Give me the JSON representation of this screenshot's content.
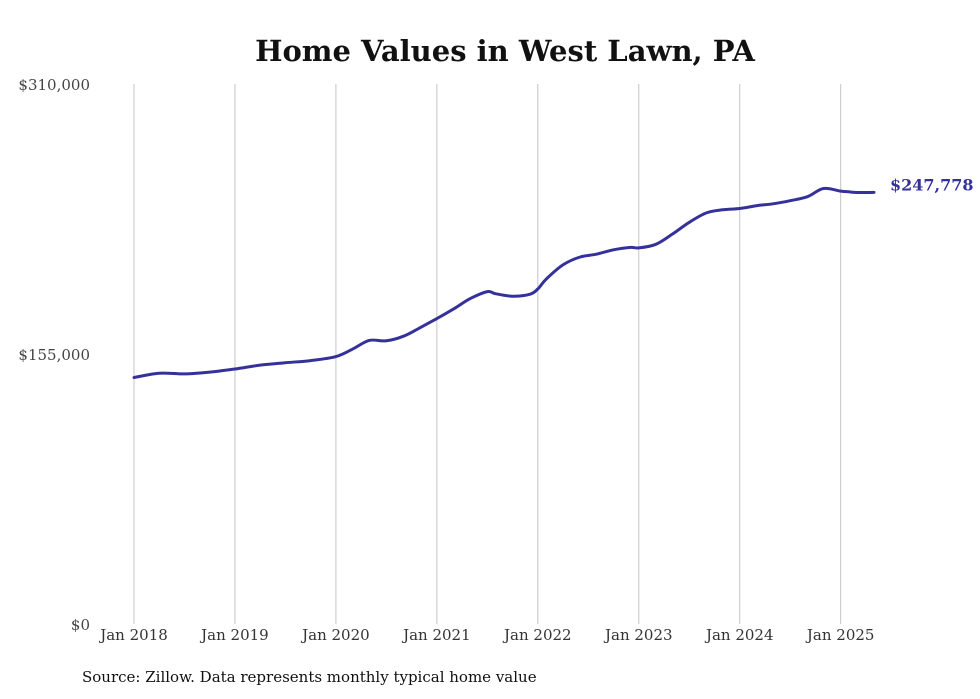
{
  "chart_data": {
    "type": "line",
    "title": "Home Values in West Lawn, PA",
    "xlabel": "",
    "ylabel": "",
    "ylim": [
      0,
      310000
    ],
    "y_ticks": [
      {
        "value": 0,
        "label": "$0"
      },
      {
        "value": 155000,
        "label": "$155,000"
      },
      {
        "value": 310000,
        "label": "$310,000"
      }
    ],
    "x_ticks": [
      {
        "value": 2018,
        "label": "Jan 2018"
      },
      {
        "value": 2019,
        "label": "Jan 2019"
      },
      {
        "value": 2020,
        "label": "Jan 2020"
      },
      {
        "value": 2021,
        "label": "Jan 2021"
      },
      {
        "value": 2022,
        "label": "Jan 2022"
      },
      {
        "value": 2023,
        "label": "Jan 2023"
      },
      {
        "value": 2024,
        "label": "Jan 2024"
      },
      {
        "value": 2025,
        "label": "Jan 2025"
      }
    ],
    "xlim": [
      2018,
      2025.33
    ],
    "grid": "vertical",
    "color": "#35319a",
    "series": [
      {
        "x": [
          2018.0,
          2018.25,
          2018.5,
          2018.75,
          2019.0,
          2019.25,
          2019.5,
          2019.75,
          2020.0,
          2020.17,
          2020.33,
          2020.5,
          2020.67,
          2020.83,
          2021.0,
          2021.17,
          2021.33,
          2021.5,
          2021.58,
          2021.75,
          2021.92,
          2022.0,
          2022.08,
          2022.25,
          2022.42,
          2022.58,
          2022.75,
          2022.92,
          2023.0,
          2023.17,
          2023.33,
          2023.5,
          2023.67,
          2023.83,
          2024.0,
          2024.17,
          2024.33,
          2024.5,
          2024.67,
          2024.83,
          2025.0,
          2025.08,
          2025.17,
          2025.33
        ],
        "values": [
          141500,
          144000,
          143600,
          144600,
          146400,
          148600,
          150000,
          151200,
          153500,
          158000,
          162800,
          162600,
          165200,
          170000,
          175300,
          181000,
          186800,
          190800,
          189600,
          188200,
          189300,
          192300,
          197800,
          206200,
          210700,
          212300,
          214800,
          216200,
          215900,
          218000,
          223700,
          230600,
          236000,
          237800,
          238500,
          240200,
          241200,
          243000,
          245300,
          250000,
          248500,
          248100,
          247700,
          247778
        ]
      }
    ],
    "end_label": "$247,778"
  },
  "source_note": "Source: Zillow. Data represents monthly typical home value"
}
